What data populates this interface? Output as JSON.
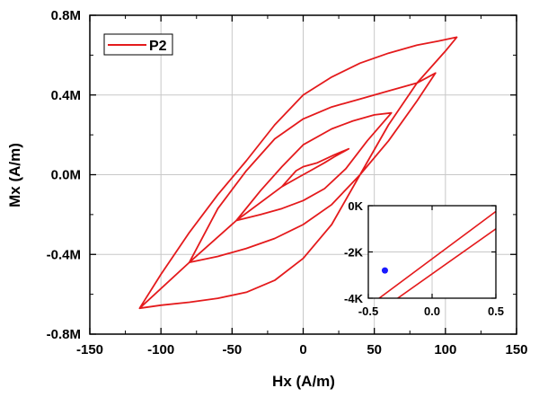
{
  "chart_data": {
    "type": "line",
    "xlabel": "Hx (A/m)",
    "ylabel": "Mx (A/m)",
    "xlim": [
      -150,
      150
    ],
    "ylim": [
      -800000,
      800000
    ],
    "xticks": [
      -150,
      -100,
      -50,
      0,
      50,
      100,
      150
    ],
    "xtick_labels": [
      "-150",
      "-100",
      "-50",
      "0",
      "50",
      "100",
      "150"
    ],
    "yticks": [
      -800000,
      -400000,
      0,
      400000,
      800000
    ],
    "ytick_labels": [
      "-0.8M",
      "-0.4M",
      "0.0M",
      "0.4M",
      "0.8M"
    ],
    "grid": true,
    "legend": {
      "position": "top-left",
      "entries": [
        "P2"
      ]
    },
    "series": [
      {
        "name": "P2",
        "color": "#e41a1c",
        "x": [
          -115,
          -100,
          -80,
          -60,
          -40,
          -20,
          0,
          20,
          40,
          60,
          80,
          100,
          108,
          95,
          80,
          60,
          40,
          20,
          0,
          -20,
          -40,
          -60,
          -80,
          -100,
          -115,
          -80,
          -60,
          -40,
          -20,
          0,
          20,
          40,
          60,
          80,
          93,
          80,
          60,
          40,
          20,
          0,
          -20,
          -40,
          -60,
          -80,
          -47,
          -30,
          -15,
          0,
          15,
          30,
          45,
          62,
          50,
          35,
          20,
          0,
          -15,
          -30,
          -47,
          -15,
          -5,
          5,
          15,
          22,
          32,
          22,
          10,
          0,
          -5,
          -15
        ],
        "y": [
          -670000,
          -655000,
          -640000,
          -620000,
          -590000,
          -530000,
          -420000,
          -250000,
          0,
          250000,
          460000,
          620000,
          690000,
          670000,
          650000,
          610000,
          560000,
          490000,
          400000,
          250000,
          70000,
          -100000,
          -290000,
          -500000,
          -670000,
          -440000,
          -410000,
          -370000,
          -320000,
          -250000,
          -150000,
          0,
          170000,
          370000,
          510000,
          460000,
          420000,
          380000,
          340000,
          280000,
          180000,
          20000,
          -170000,
          -440000,
          -230000,
          -200000,
          -170000,
          -130000,
          -70000,
          30000,
          170000,
          310000,
          300000,
          270000,
          230000,
          150000,
          40000,
          -80000,
          -230000,
          -60000,
          -20000,
          20000,
          60000,
          90000,
          130000,
          100000,
          60000,
          40000,
          20000,
          -60000
        ]
      }
    ],
    "inset": {
      "xlim": [
        -0.5,
        0.5
      ],
      "ylim": [
        -4000,
        0
      ],
      "xticks": [
        -0.5,
        0,
        0.5
      ],
      "xtick_labels": [
        "-0.5",
        "0.0",
        "0.5"
      ],
      "yticks": [
        -4000,
        -2000,
        0
      ],
      "ytick_labels": [
        "-4K",
        "-2K",
        "0K"
      ],
      "grid": true,
      "lines": [
        {
          "x": [
            -0.5,
            0.5
          ],
          "y": [
            -4350,
            -250
          ]
        },
        {
          "x": [
            -0.5,
            0.5
          ],
          "y": [
            -4900,
            -1000
          ]
        }
      ],
      "marker": {
        "x": -0.37,
        "y": -2800,
        "color": "#1a1aff"
      }
    }
  }
}
